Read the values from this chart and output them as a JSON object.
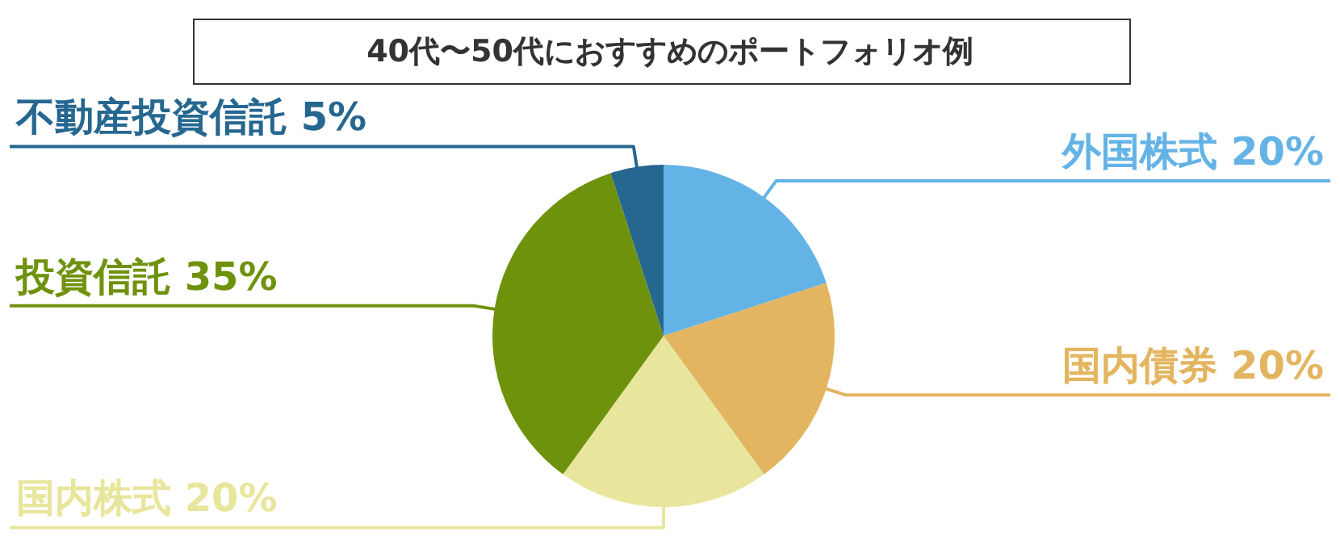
{
  "chart_data": {
    "type": "pie",
    "title": "40代〜50代におすすめのポートフォリオ例",
    "categories": [
      "外国株式",
      "国内債券",
      "国内株式",
      "投資信託",
      "不動産投資信託"
    ],
    "values": [
      20,
      20,
      20,
      35,
      5
    ],
    "value_labels": [
      "20%",
      "20%",
      "20%",
      "35%",
      "5%"
    ],
    "colors": [
      "#64b3e6",
      "#e3b560",
      "#e8e69c",
      "#6f920c",
      "#266790"
    ]
  }
}
